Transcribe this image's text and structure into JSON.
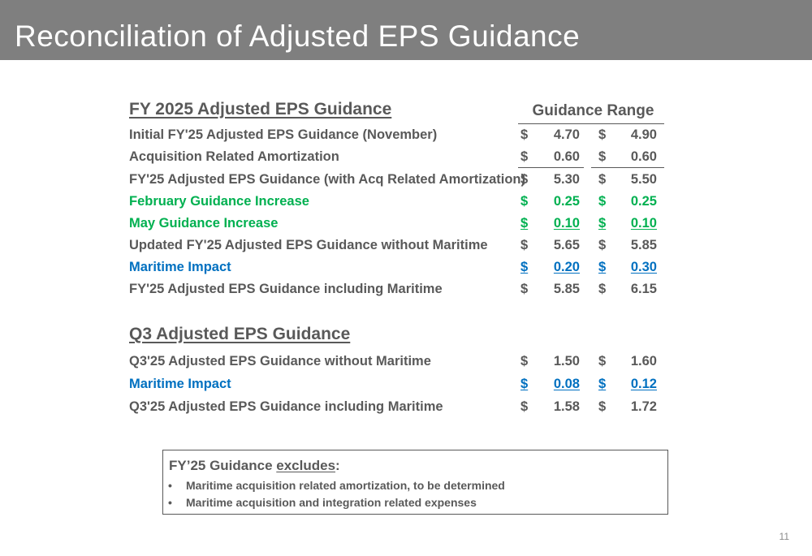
{
  "slide": {
    "title": "Reconciliation of Adjusted EPS Guidance",
    "page_number": "11"
  },
  "fy_section": {
    "heading": "FY 2025 Adjusted EPS Guidance",
    "range_header": "Guidance Range",
    "rows": [
      {
        "label": "Initial FY'25 Adjusted EPS Guidance (November)",
        "cur1": "$",
        "low": "4.70",
        "cur2": "$",
        "high": "4.90",
        "color": "grey"
      },
      {
        "label": "Acquisition Related Amortization",
        "cur1": "$",
        "low": "0.60",
        "cur2": "$",
        "high": "0.60",
        "color": "grey"
      },
      {
        "label": "FY'25 Adjusted EPS Guidance (with Acq Related Amortization)",
        "cur1": "$",
        "low": "5.30",
        "cur2": "$",
        "high": "5.50",
        "color": "grey"
      },
      {
        "label": "February Guidance Increase",
        "cur1": "$",
        "low": "0.25",
        "cur2": "$",
        "high": "0.25",
        "color": "green"
      },
      {
        "label": "May Guidance Increase",
        "cur1": "$",
        "low": "0.10",
        "cur2": "$",
        "high": "0.10",
        "color": "green"
      },
      {
        "label": "Updated FY'25 Adjusted EPS Guidance without Maritime",
        "cur1": "$",
        "low": "5.65",
        "cur2": "$",
        "high": "5.85",
        "color": "grey"
      },
      {
        "label": "Maritime Impact",
        "cur1": "$",
        "low": "0.20",
        "cur2": "$",
        "high": "0.30",
        "color": "blue"
      },
      {
        "label": "FY'25 Adjusted EPS Guidance including Maritime",
        "cur1": "$",
        "low": "5.85",
        "cur2": "$",
        "high": "6.15",
        "color": "grey"
      }
    ]
  },
  "q3_section": {
    "heading": "Q3 Adjusted EPS Guidance",
    "rows": [
      {
        "label": "Q3'25 Adjusted EPS Guidance without Maritime",
        "cur1": "$",
        "low": "1.50",
        "cur2": "$",
        "high": "1.60",
        "color": "grey"
      },
      {
        "label": "Maritime Impact",
        "cur1": "$",
        "low": "0.08",
        "cur2": "$",
        "high": "0.12",
        "color": "blue"
      },
      {
        "label": "Q3'25 Adjusted EPS Guidance including Maritime",
        "cur1": "$",
        "low": "1.58",
        "cur2": "$",
        "high": "1.72",
        "color": "grey"
      }
    ]
  },
  "note": {
    "heading_prefix": "FY’25 Guidance ",
    "heading_emph": "excludes",
    "heading_suffix": ":",
    "bullet": "•",
    "items": [
      "Maritime acquisition related amortization, to be determined",
      "Maritime acquisition and integration related expenses"
    ]
  }
}
